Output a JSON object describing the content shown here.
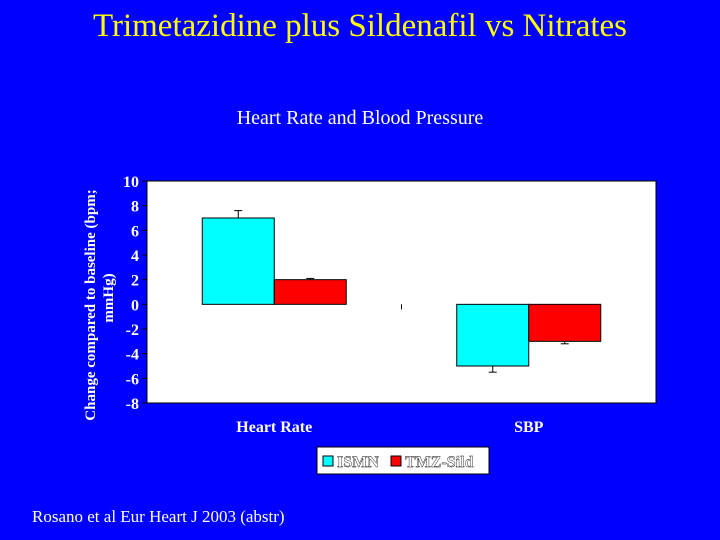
{
  "slide": {
    "title": "Trimetazidine plus Sildenafil vs Nitrates",
    "footer": "Rosano et al Eur Heart J 2003 (abstr)"
  },
  "colors": {
    "background": "#0000ff",
    "title": "#ffff00",
    "text": "#ffffff",
    "plot_area": "#ffffff"
  },
  "chart_data": {
    "type": "bar",
    "title": "Heart Rate and Blood Pressure",
    "ylabel": "Change compared to baseline (bpm; mmHg)",
    "xlabel": "",
    "categories": [
      "Heart Rate",
      "SBP"
    ],
    "ylim": [
      -8,
      10
    ],
    "yticks": [
      10,
      8,
      6,
      4,
      2,
      0,
      -2,
      -4,
      -6,
      -8
    ],
    "grid": false,
    "legend_position": "bottom",
    "series": [
      {
        "name": "ISMN",
        "values": [
          7,
          -5
        ],
        "errors": [
          0.6,
          0.5
        ],
        "color": "#00ffff"
      },
      {
        "name": "TMZ-Sild",
        "values": [
          2,
          -3
        ],
        "errors": [
          0.1,
          0.2
        ],
        "color": "#ff0000"
      }
    ]
  }
}
